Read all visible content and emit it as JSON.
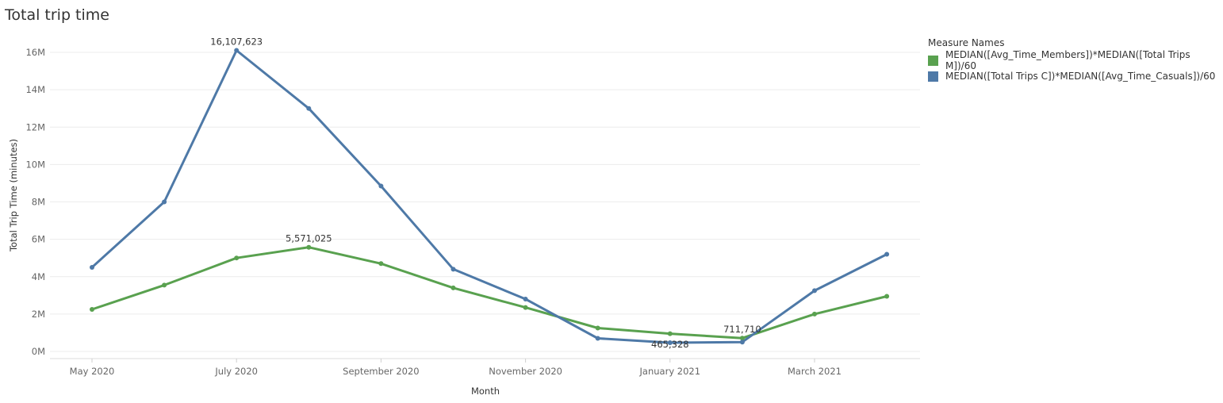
{
  "page": {
    "title": "Total trip time"
  },
  "legend": {
    "title": "Measure Names",
    "items": [
      {
        "label": "MEDIAN([Avg_Time_Members])*MEDIAN([Total Trips M])/60",
        "color": "#59a14f"
      },
      {
        "label": "MEDIAN([Total Trips C])*MEDIAN([Avg_Time_Casuals])/60",
        "color": "#4e79a7"
      }
    ]
  },
  "chart_data": {
    "type": "line",
    "title": "Total trip time",
    "xlabel": "Month",
    "ylabel": "Total Trip Time (minutes)",
    "ylim": [
      0,
      16500000
    ],
    "grid": true,
    "legend_position": "top-right",
    "x": [
      "2020-05",
      "2020-06",
      "2020-07",
      "2020-08",
      "2020-09",
      "2020-10",
      "2020-11",
      "2020-12",
      "2021-01",
      "2021-02",
      "2021-03",
      "2021-04"
    ],
    "x_ticks": [
      {
        "x": "2020-05",
        "label": "May 2020"
      },
      {
        "x": "2020-07",
        "label": "July 2020"
      },
      {
        "x": "2020-09",
        "label": "September 2020"
      },
      {
        "x": "2020-11",
        "label": "November 2020"
      },
      {
        "x": "2021-01",
        "label": "January 2021"
      },
      {
        "x": "2021-03",
        "label": "March 2021"
      }
    ],
    "y_ticks": [
      {
        "value": 0,
        "label": "0M"
      },
      {
        "value": 2000000,
        "label": "2M"
      },
      {
        "value": 4000000,
        "label": "4M"
      },
      {
        "value": 6000000,
        "label": "6M"
      },
      {
        "value": 8000000,
        "label": "8M"
      },
      {
        "value": 10000000,
        "label": "10M"
      },
      {
        "value": 12000000,
        "label": "12M"
      },
      {
        "value": 14000000,
        "label": "14M"
      },
      {
        "value": 16000000,
        "label": "16M"
      }
    ],
    "series": [
      {
        "name": "MEDIAN([Avg_Time_Members])*MEDIAN([Total Trips M])/60",
        "color": "#59a14f",
        "values": [
          2250000,
          3550000,
          5000000,
          5571025,
          4700000,
          3400000,
          2350000,
          1250000,
          950000,
          711710,
          2000000,
          2950000
        ],
        "labels": [
          {
            "index": 3,
            "text": "5,571,025",
            "placement": "above"
          },
          {
            "index": 9,
            "text": "711,710",
            "placement": "above"
          }
        ]
      },
      {
        "name": "MEDIAN([Total Trips C])*MEDIAN([Avg_Time_Casuals])/60",
        "color": "#4e79a7",
        "values": [
          4500000,
          8000000,
          16107623,
          13000000,
          8850000,
          4400000,
          2800000,
          700000,
          465328,
          500000,
          3250000,
          5200000
        ],
        "labels": [
          {
            "index": 2,
            "text": "16,107,623",
            "placement": "above"
          },
          {
            "index": 8,
            "text": "465,328",
            "placement": "below"
          }
        ]
      }
    ]
  }
}
